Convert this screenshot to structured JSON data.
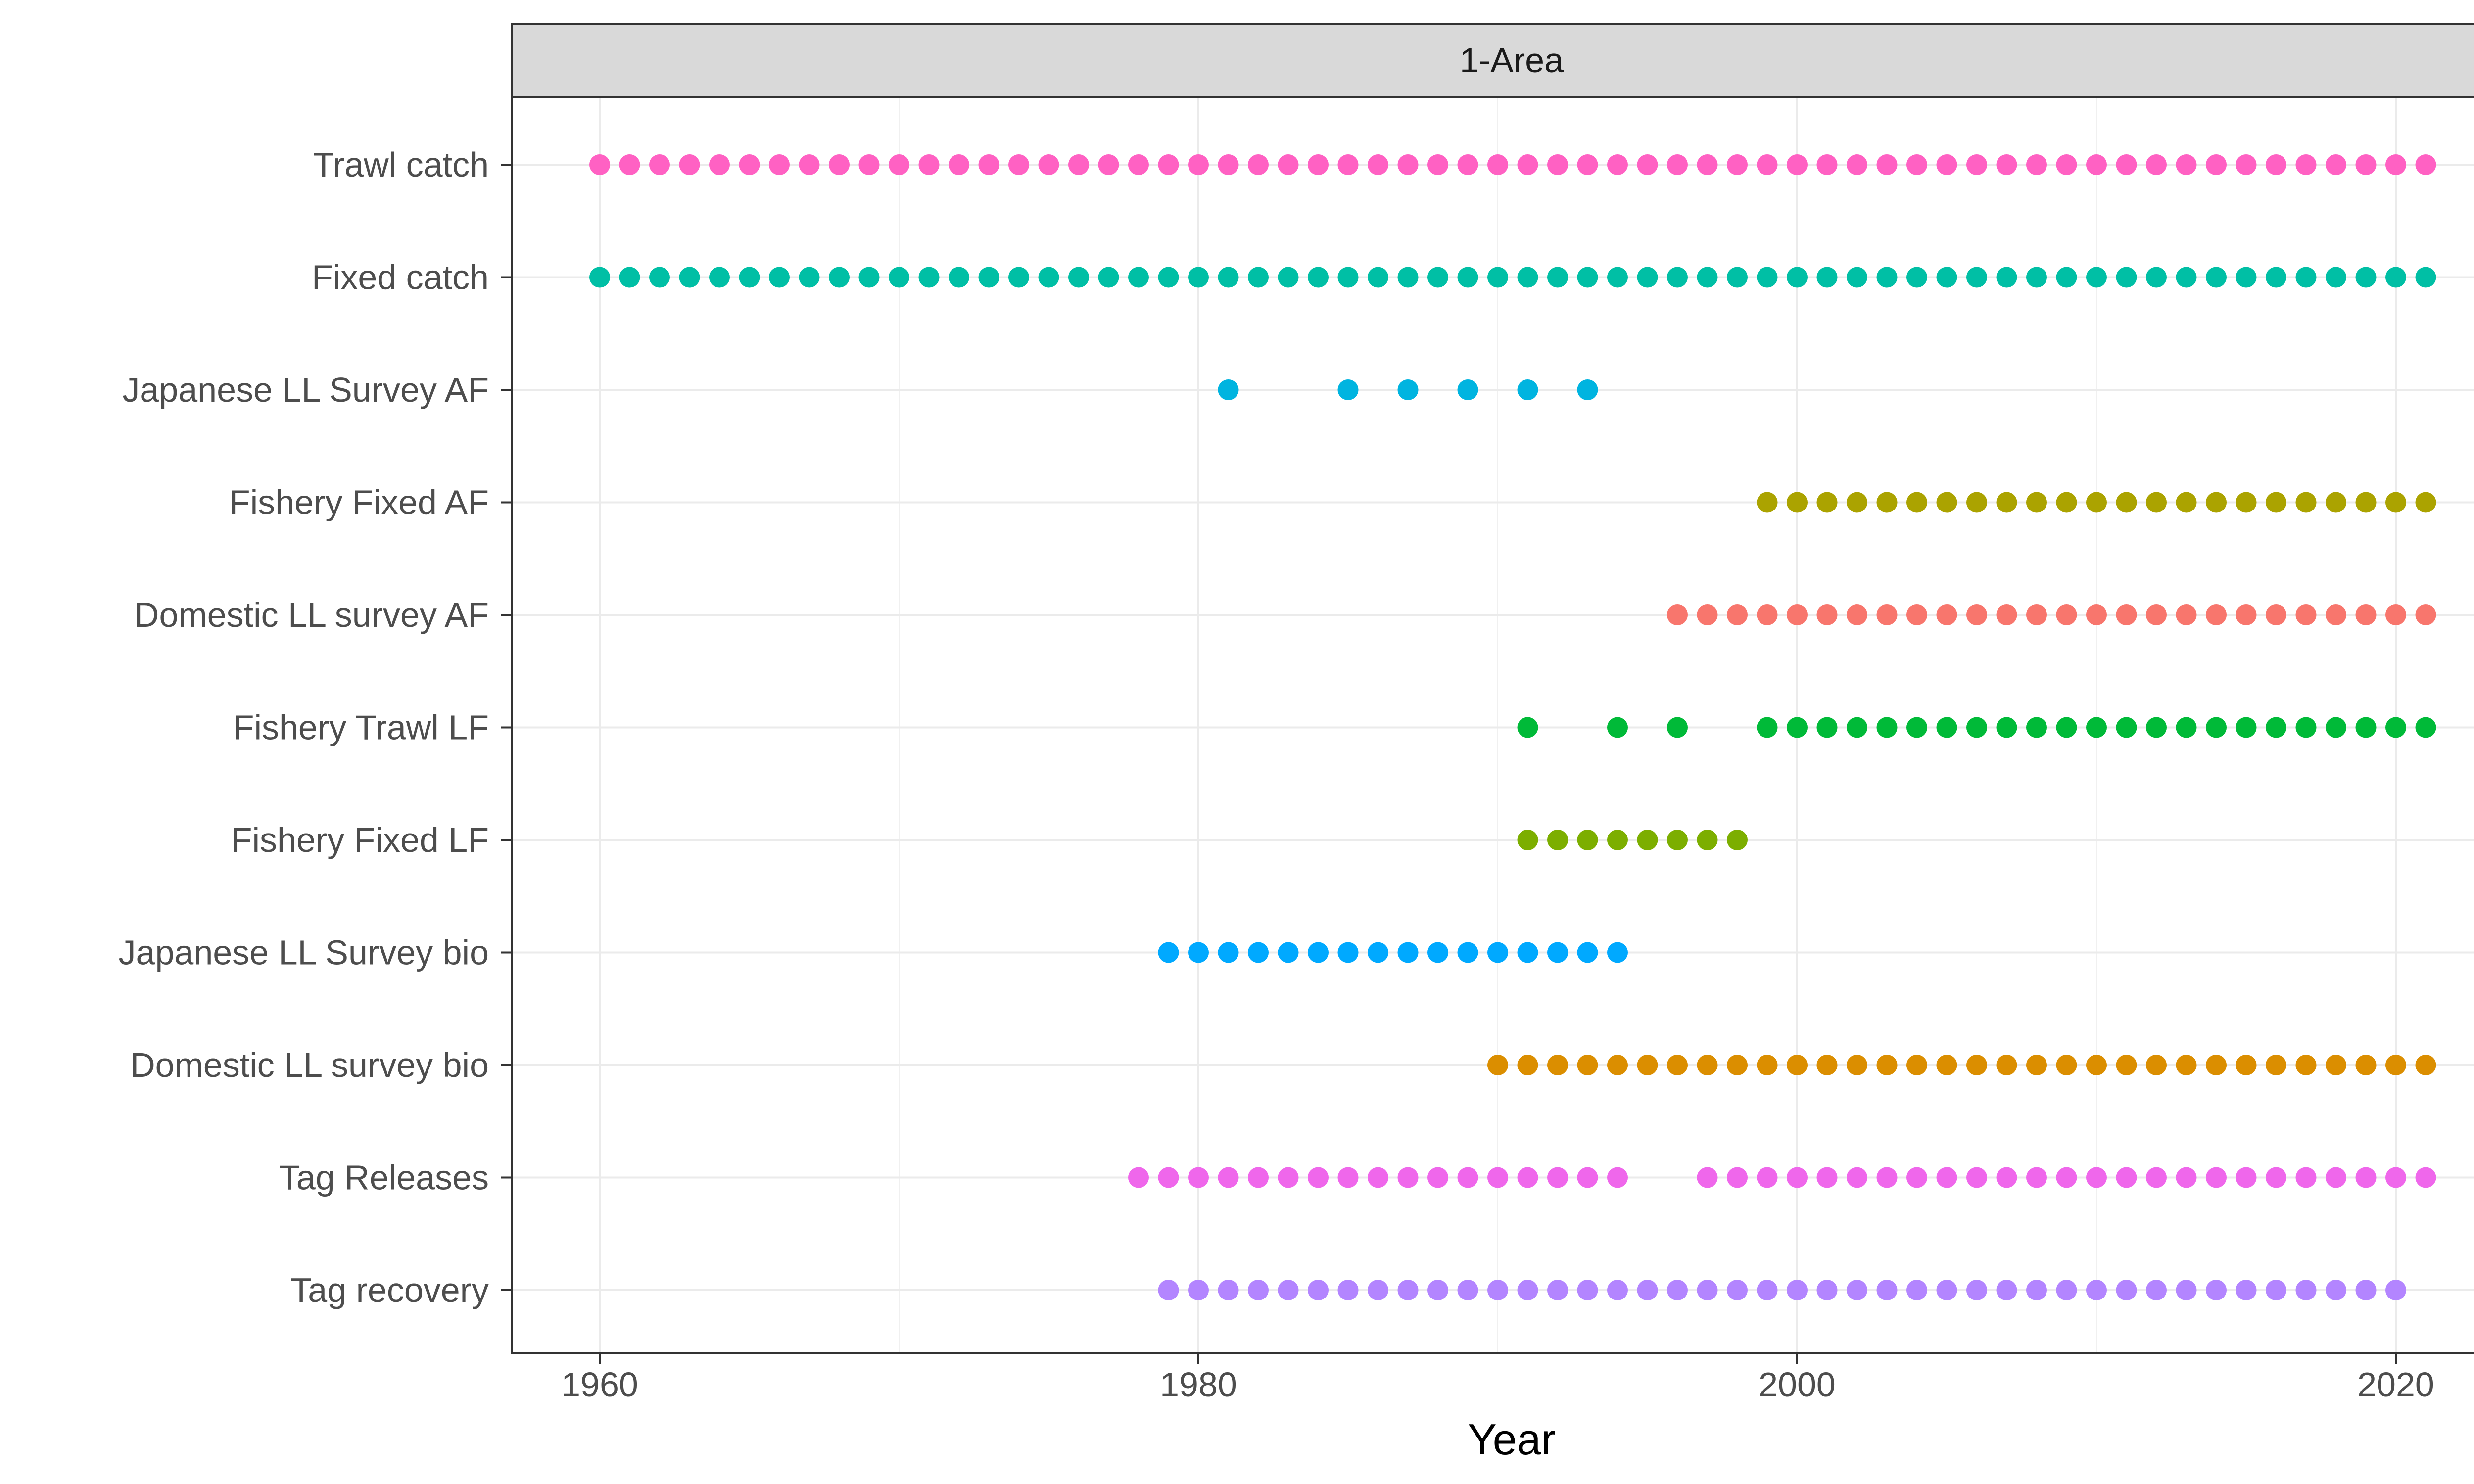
{
  "chart_data": {
    "type": "scatter",
    "facet_label": "1-Area",
    "xlabel": "Year",
    "ylabel": "",
    "xlim": [
      1957,
      2024
    ],
    "x_ticks": [
      1960,
      1980,
      2000,
      2020
    ],
    "grid": true,
    "legend": "none",
    "series": [
      {
        "name": "Trawl catch",
        "color": "#FF61C3",
        "years": [
          1960,
          1961,
          1962,
          1963,
          1964,
          1965,
          1966,
          1967,
          1968,
          1969,
          1970,
          1971,
          1972,
          1973,
          1974,
          1975,
          1976,
          1977,
          1978,
          1979,
          1980,
          1981,
          1982,
          1983,
          1984,
          1985,
          1986,
          1987,
          1988,
          1989,
          1990,
          1991,
          1992,
          1993,
          1994,
          1995,
          1996,
          1997,
          1998,
          1999,
          2000,
          2001,
          2002,
          2003,
          2004,
          2005,
          2006,
          2007,
          2008,
          2009,
          2010,
          2011,
          2012,
          2013,
          2014,
          2015,
          2016,
          2017,
          2018,
          2019,
          2020,
          2021
        ]
      },
      {
        "name": "Fixed catch",
        "color": "#00BFA5",
        "years": [
          1960,
          1961,
          1962,
          1963,
          1964,
          1965,
          1966,
          1967,
          1968,
          1969,
          1970,
          1971,
          1972,
          1973,
          1974,
          1975,
          1976,
          1977,
          1978,
          1979,
          1980,
          1981,
          1982,
          1983,
          1984,
          1985,
          1986,
          1987,
          1988,
          1989,
          1990,
          1991,
          1992,
          1993,
          1994,
          1995,
          1996,
          1997,
          1998,
          1999,
          2000,
          2001,
          2002,
          2003,
          2004,
          2005,
          2006,
          2007,
          2008,
          2009,
          2010,
          2011,
          2012,
          2013,
          2014,
          2015,
          2016,
          2017,
          2018,
          2019,
          2020,
          2021
        ]
      },
      {
        "name": "Japanese LL Survey AF",
        "color": "#00B4E0",
        "years": [
          1981,
          1985,
          1987,
          1989,
          1991,
          1993
        ]
      },
      {
        "name": "Fishery Fixed AF",
        "color": "#ABA300",
        "years": [
          1999,
          2000,
          2001,
          2002,
          2003,
          2004,
          2005,
          2006,
          2007,
          2008,
          2009,
          2010,
          2011,
          2012,
          2013,
          2014,
          2015,
          2016,
          2017,
          2018,
          2019,
          2020,
          2021
        ]
      },
      {
        "name": "Domestic LL survey AF",
        "color": "#F8766D",
        "years": [
          1996,
          1997,
          1998,
          1999,
          2000,
          2001,
          2002,
          2003,
          2004,
          2005,
          2006,
          2007,
          2008,
          2009,
          2010,
          2011,
          2012,
          2013,
          2014,
          2015,
          2016,
          2017,
          2018,
          2019,
          2020,
          2021
        ]
      },
      {
        "name": "Fishery Trawl LF",
        "color": "#00BA38",
        "years": [
          1991,
          1994,
          1996,
          1999,
          2000,
          2001,
          2002,
          2003,
          2004,
          2005,
          2006,
          2007,
          2008,
          2009,
          2010,
          2011,
          2012,
          2013,
          2014,
          2015,
          2016,
          2017,
          2018,
          2019,
          2020,
          2021
        ]
      },
      {
        "name": "Fishery Fixed LF",
        "color": "#7CAE00",
        "years": [
          1991,
          1992,
          1993,
          1994,
          1995,
          1996,
          1997,
          1998
        ]
      },
      {
        "name": "Japanese LL Survey bio",
        "color": "#00A9FF",
        "years": [
          1979,
          1980,
          1981,
          1982,
          1983,
          1984,
          1985,
          1986,
          1987,
          1988,
          1989,
          1990,
          1991,
          1992,
          1993,
          1994
        ]
      },
      {
        "name": "Domestic LL survey bio",
        "color": "#DB8E00",
        "years": [
          1990,
          1991,
          1992,
          1993,
          1994,
          1995,
          1996,
          1997,
          1998,
          1999,
          2000,
          2001,
          2002,
          2003,
          2004,
          2005,
          2006,
          2007,
          2008,
          2009,
          2010,
          2011,
          2012,
          2013,
          2014,
          2015,
          2016,
          2017,
          2018,
          2019,
          2020,
          2021
        ]
      },
      {
        "name": "Tag Releases",
        "color": "#EF67EB",
        "years": [
          1978,
          1979,
          1980,
          1981,
          1982,
          1983,
          1984,
          1985,
          1986,
          1987,
          1988,
          1989,
          1990,
          1991,
          1992,
          1993,
          1994,
          1997,
          1998,
          1999,
          2000,
          2001,
          2002,
          2003,
          2004,
          2005,
          2006,
          2007,
          2008,
          2009,
          2010,
          2011,
          2012,
          2013,
          2014,
          2015,
          2016,
          2017,
          2018,
          2019,
          2020,
          2021
        ]
      },
      {
        "name": "Tag recovery",
        "color": "#B385FF",
        "years": [
          1979,
          1980,
          1981,
          1982,
          1983,
          1984,
          1985,
          1986,
          1987,
          1988,
          1989,
          1990,
          1991,
          1992,
          1993,
          1994,
          1995,
          1996,
          1997,
          1998,
          1999,
          2000,
          2001,
          2002,
          2003,
          2004,
          2005,
          2006,
          2007,
          2008,
          2009,
          2010,
          2011,
          2012,
          2013,
          2014,
          2015,
          2016,
          2017,
          2018,
          2019,
          2020
        ]
      }
    ]
  }
}
